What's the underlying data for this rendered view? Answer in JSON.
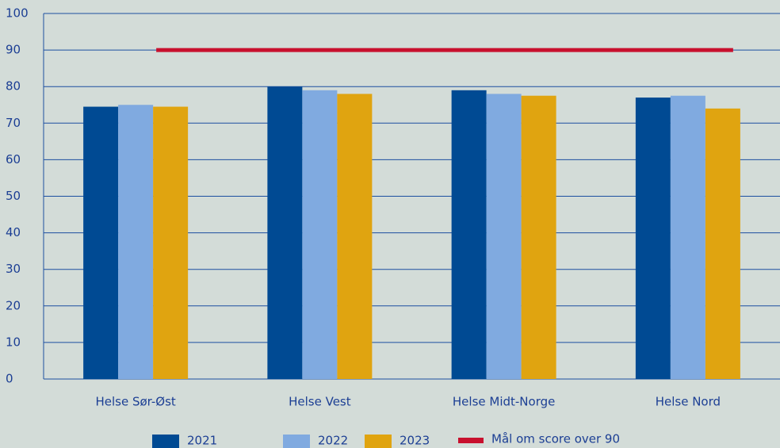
{
  "chart_data": {
    "type": "bar",
    "categories": [
      "Helse Sør-Øst",
      "Helse Vest",
      "Helse Midt-Norge",
      "Helse Nord"
    ],
    "series": [
      {
        "name": "2021",
        "color": "#004a93",
        "values": [
          74.5,
          80,
          79,
          77
        ]
      },
      {
        "name": "2022",
        "color": "#80aae0",
        "values": [
          75,
          79,
          78,
          77.5
        ]
      },
      {
        "name": "2023",
        "color": "#e0a410",
        "values": [
          74.5,
          78,
          77.5,
          74
        ]
      }
    ],
    "target": {
      "name": "Mål om score over 90",
      "value": 90,
      "color": "#c8102e"
    },
    "ylim": [
      0,
      100
    ],
    "yticks": [
      0,
      10,
      20,
      30,
      40,
      50,
      60,
      70,
      80,
      90,
      100
    ],
    "grid": true,
    "legend": "bottom"
  }
}
